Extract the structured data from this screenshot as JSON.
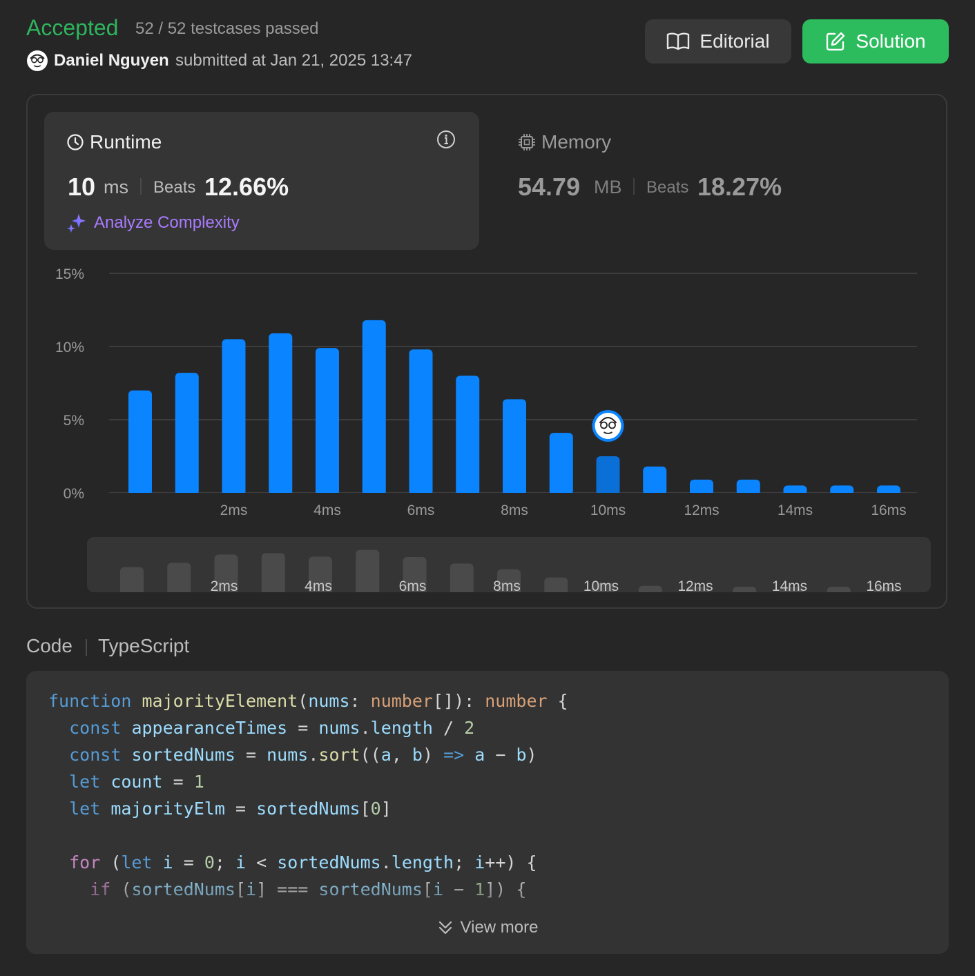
{
  "header": {
    "status": "Accepted",
    "testcases": "52 / 52 testcases passed",
    "submitter": "Daniel Nguyen",
    "submitted_at": "submitted at Jan 21, 2025 13:47",
    "editorial_label": "Editorial",
    "solution_label": "Solution"
  },
  "runtime": {
    "title": "Runtime",
    "value": "10",
    "unit": "ms",
    "beats_label": "Beats",
    "beats_value": "12.66%",
    "analyze_label": "Analyze Complexity"
  },
  "memory": {
    "title": "Memory",
    "value": "54.79",
    "unit": "MB",
    "beats_label": "Beats",
    "beats_value": "18.27%"
  },
  "colors": {
    "accepted": "#2db55d",
    "bar": "#0a84ff",
    "bar_highlight": "#0a6fd6",
    "analyze": "#a97bff",
    "solution_button": "#2cbb5d"
  },
  "chart_data": {
    "type": "bar",
    "x": [
      0,
      1,
      2,
      3,
      4,
      5,
      6,
      7,
      8,
      9,
      10,
      11,
      12,
      13,
      14,
      15,
      16
    ],
    "values": [
      7.0,
      8.2,
      10.5,
      10.9,
      9.9,
      11.8,
      9.8,
      8.0,
      6.4,
      4.1,
      2.5,
      1.8,
      0.9,
      0.9,
      0.5,
      0.5,
      0.5
    ],
    "highlight_x": 10,
    "x_tick_labels": [
      "2ms",
      "4ms",
      "6ms",
      "8ms",
      "10ms",
      "12ms",
      "14ms",
      "16ms"
    ],
    "x_tick_values": [
      2,
      4,
      6,
      8,
      10,
      12,
      14,
      16
    ],
    "y_tick_labels": [
      "0%",
      "5%",
      "10%",
      "15%"
    ],
    "y_tick_values": [
      0,
      5,
      10,
      15
    ],
    "ylim": [
      0,
      15
    ],
    "grid": true
  },
  "code": {
    "label": "Code",
    "language": "TypeScript",
    "lines": [
      [
        [
          "kw",
          "function"
        ],
        [
          "op",
          " "
        ],
        [
          "fn",
          "majorityElement"
        ],
        [
          "op",
          "("
        ],
        [
          "var",
          "nums"
        ],
        [
          "op",
          ": "
        ],
        [
          "type",
          "number"
        ],
        [
          "op",
          "[]): "
        ],
        [
          "type",
          "number"
        ],
        [
          "op",
          " {"
        ]
      ],
      [
        [
          "op",
          "  "
        ],
        [
          "kw",
          "const"
        ],
        [
          "op",
          " "
        ],
        [
          "var",
          "appearanceTimes"
        ],
        [
          "op",
          " = "
        ],
        [
          "var",
          "nums"
        ],
        [
          "op",
          "."
        ],
        [
          "var",
          "length"
        ],
        [
          "op",
          " / "
        ],
        [
          "num",
          "2"
        ]
      ],
      [
        [
          "op",
          "  "
        ],
        [
          "kw",
          "const"
        ],
        [
          "op",
          " "
        ],
        [
          "var",
          "sortedNums"
        ],
        [
          "op",
          " = "
        ],
        [
          "var",
          "nums"
        ],
        [
          "op",
          "."
        ],
        [
          "fn",
          "sort"
        ],
        [
          "op",
          "(("
        ],
        [
          "var",
          "a"
        ],
        [
          "op",
          ", "
        ],
        [
          "var",
          "b"
        ],
        [
          "op",
          ") "
        ],
        [
          "kw",
          "=>"
        ],
        [
          "op",
          " "
        ],
        [
          "var",
          "a"
        ],
        [
          "op",
          " − "
        ],
        [
          "var",
          "b"
        ],
        [
          "op",
          ")"
        ]
      ],
      [
        [
          "op",
          "  "
        ],
        [
          "kw",
          "let"
        ],
        [
          "op",
          " "
        ],
        [
          "var",
          "count"
        ],
        [
          "op",
          " = "
        ],
        [
          "num",
          "1"
        ]
      ],
      [
        [
          "op",
          "  "
        ],
        [
          "kw",
          "let"
        ],
        [
          "op",
          " "
        ],
        [
          "var",
          "majorityElm"
        ],
        [
          "op",
          " = "
        ],
        [
          "var",
          "sortedNums"
        ],
        [
          "op",
          "["
        ],
        [
          "num",
          "0"
        ],
        [
          "op",
          "]"
        ]
      ],
      [
        [
          "op",
          " "
        ]
      ],
      [
        [
          "op",
          "  "
        ],
        [
          "ctl",
          "for"
        ],
        [
          "op",
          " ("
        ],
        [
          "kw",
          "let"
        ],
        [
          "op",
          " "
        ],
        [
          "var",
          "i"
        ],
        [
          "op",
          " = "
        ],
        [
          "num",
          "0"
        ],
        [
          "op",
          "; "
        ],
        [
          "var",
          "i"
        ],
        [
          "op",
          " < "
        ],
        [
          "var",
          "sortedNums"
        ],
        [
          "op",
          "."
        ],
        [
          "var",
          "length"
        ],
        [
          "op",
          "; "
        ],
        [
          "var",
          "i"
        ],
        [
          "op",
          "++) {"
        ]
      ],
      [
        [
          "op",
          "    "
        ],
        [
          "ctl",
          "if"
        ],
        [
          "op",
          " ("
        ],
        [
          "var",
          "sortedNums"
        ],
        [
          "op",
          "["
        ],
        [
          "var",
          "i"
        ],
        [
          "op",
          "] === "
        ],
        [
          "var",
          "sortedNums"
        ],
        [
          "op",
          "["
        ],
        [
          "var",
          "i"
        ],
        [
          "op",
          " − "
        ],
        [
          "num",
          "1"
        ],
        [
          "op",
          "]) {"
        ]
      ]
    ],
    "view_more_label": "View more"
  }
}
